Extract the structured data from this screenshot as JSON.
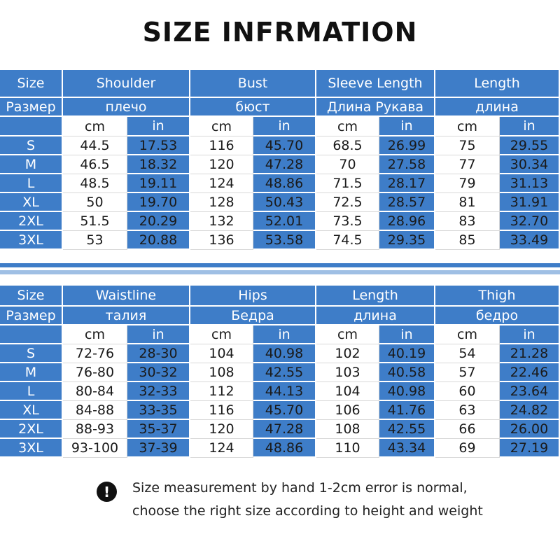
{
  "title": "SIZE INFRMATION",
  "tables": [
    {
      "header": [
        "Size",
        "Shoulder",
        "Bust",
        "Sleeve Length",
        "Length"
      ],
      "header_ru": [
        "Размер",
        "плечо",
        "бюст",
        "Длина Рукава",
        "длина"
      ],
      "units": [
        "cm",
        "in"
      ],
      "rows": [
        [
          "S",
          "44.5",
          "17.53",
          "116",
          "45.70",
          "68.5",
          "26.99",
          "75",
          "29.55"
        ],
        [
          "M",
          "46.5",
          "18.32",
          "120",
          "47.28",
          "70",
          "27.58",
          "77",
          "30.34"
        ],
        [
          "L",
          "48.5",
          "19.11",
          "124",
          "48.86",
          "71.5",
          "28.17",
          "79",
          "31.13"
        ],
        [
          "XL",
          "50",
          "19.70",
          "128",
          "50.43",
          "72.5",
          "28.57",
          "81",
          "31.91"
        ],
        [
          "2XL",
          "51.5",
          "20.29",
          "132",
          "52.01",
          "73.5",
          "28.96",
          "83",
          "32.70"
        ],
        [
          "3XL",
          "53",
          "20.88",
          "136",
          "53.58",
          "74.5",
          "29.35",
          "85",
          "33.49"
        ]
      ]
    },
    {
      "header": [
        "Size",
        "Waistline",
        "Hips",
        "Length",
        "Thigh"
      ],
      "header_ru": [
        "Размер",
        "талия",
        "Бедра",
        "длина",
        "бедро"
      ],
      "units": [
        "cm",
        "in"
      ],
      "rows": [
        [
          "S",
          "72-76",
          "28-30",
          "104",
          "40.98",
          "102",
          "40.19",
          "54",
          "21.28"
        ],
        [
          "M",
          "76-80",
          "30-32",
          "108",
          "42.55",
          "103",
          "40.58",
          "57",
          "22.46"
        ],
        [
          "L",
          "80-84",
          "32-33",
          "112",
          "44.13",
          "104",
          "40.98",
          "60",
          "23.64"
        ],
        [
          "XL",
          "84-88",
          "33-35",
          "116",
          "45.70",
          "106",
          "41.76",
          "63",
          "24.82"
        ],
        [
          "2XL",
          "88-93",
          "35-37",
          "120",
          "47.28",
          "108",
          "42.55",
          "66",
          "26.00"
        ],
        [
          "3XL",
          "93-100",
          "37-39",
          "124",
          "48.86",
          "110",
          "43.34",
          "69",
          "27.19"
        ]
      ]
    }
  ],
  "note": [
    "Size measurement by hand 1-2cm error is normal,",
    "choose the right size according to height and weight"
  ]
}
